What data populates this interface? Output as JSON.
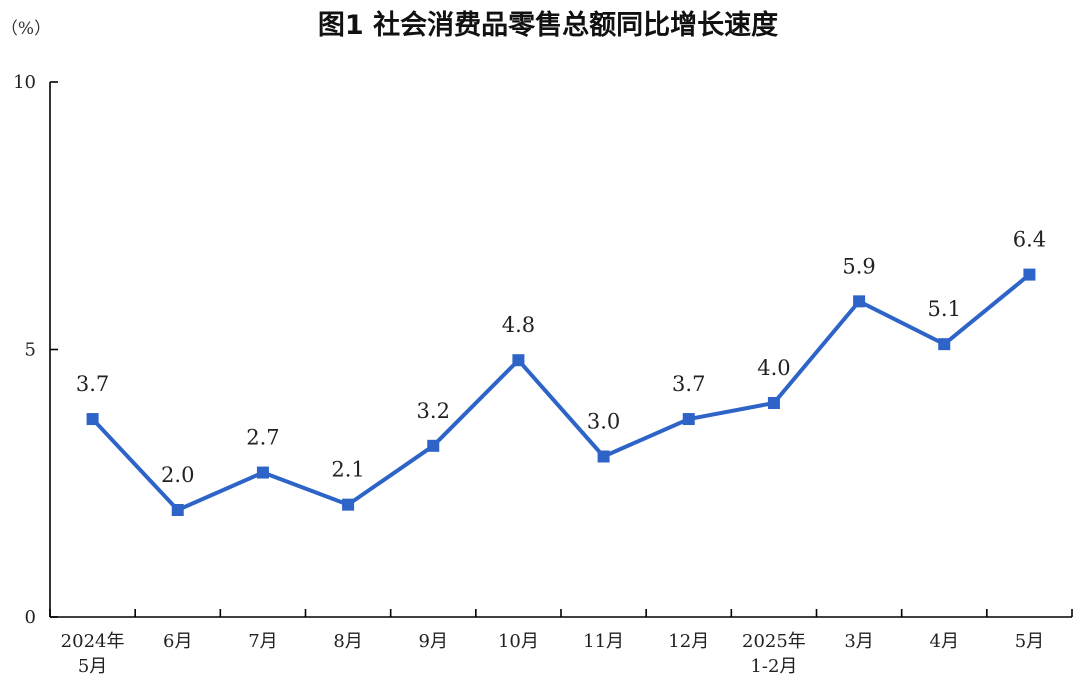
{
  "chart_data": {
    "type": "line",
    "title": "图1  社会消费品零售总额同比增长速度",
    "ylabel": "（%）",
    "ylim": [
      0,
      10
    ],
    "yticks": [
      0,
      5,
      10
    ],
    "categories": [
      [
        "2024年",
        "5月"
      ],
      [
        "6月"
      ],
      [
        "7月"
      ],
      [
        "8月"
      ],
      [
        "9月"
      ],
      [
        "10月"
      ],
      [
        "11月"
      ],
      [
        "12月"
      ],
      [
        "2025年",
        "1-2月"
      ],
      [
        "3月"
      ],
      [
        "4月"
      ],
      [
        "5月"
      ]
    ],
    "series": [
      {
        "values": [
          3.7,
          2.0,
          2.7,
          2.1,
          3.2,
          4.8,
          3.0,
          3.7,
          4.0,
          5.9,
          5.1,
          6.4
        ],
        "labels": [
          "3.7",
          "2.0",
          "2.7",
          "2.1",
          "3.2",
          "4.8",
          "3.0",
          "3.7",
          "4.0",
          "5.9",
          "5.1",
          "6.4"
        ]
      }
    ],
    "color": "#2e64c8",
    "grid": false
  }
}
